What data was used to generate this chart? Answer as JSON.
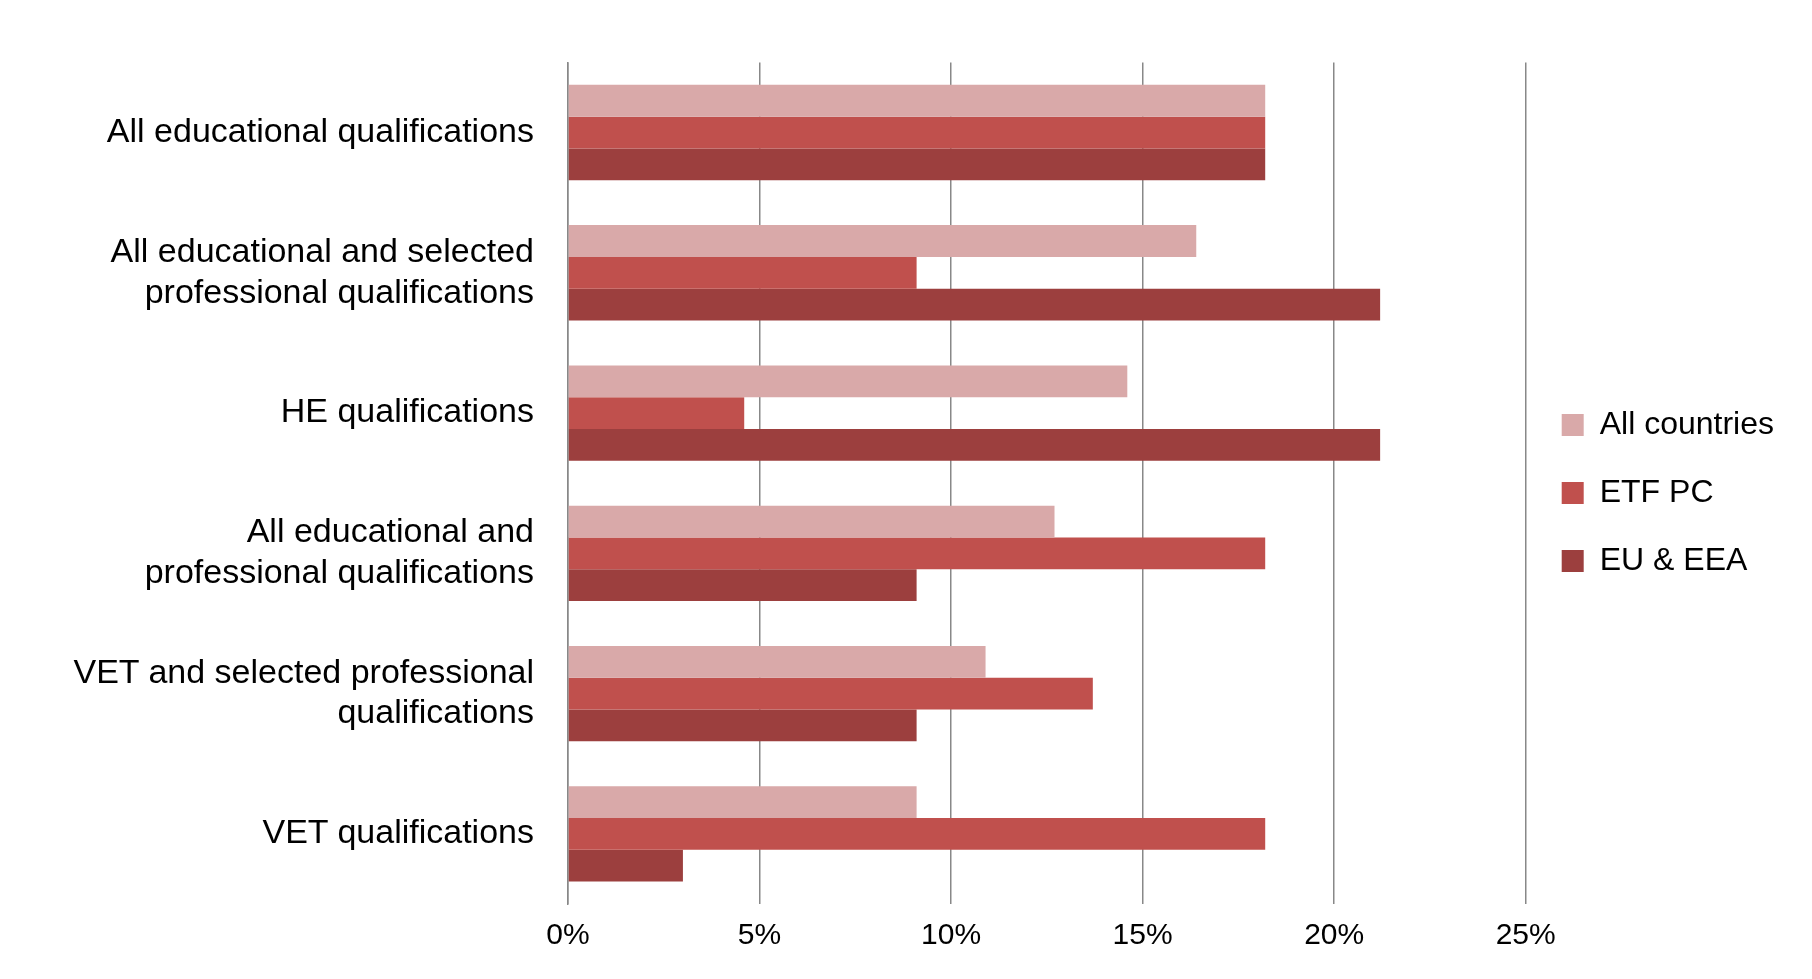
{
  "chart_data": {
    "type": "bar",
    "orientation": "horizontal",
    "categories": [
      "All educational qualifications",
      "All educational and selected professional qualifications",
      "HE qualifications",
      "All educational and professional qualifications",
      "VET and selected professional qualifications",
      "VET qualifications"
    ],
    "series": [
      {
        "name": "All countries",
        "color": "#d9a9a9",
        "values": [
          18.2,
          16.4,
          14.6,
          12.7,
          10.9,
          9.1
        ]
      },
      {
        "name": "ETF PC",
        "color": "#c0504d",
        "values": [
          18.2,
          9.1,
          4.6,
          18.2,
          13.7,
          18.2
        ]
      },
      {
        "name": "EU & EEA",
        "color": "#9c3f3e",
        "values": [
          18.2,
          21.2,
          21.2,
          9.1,
          9.1,
          3.0
        ]
      }
    ],
    "xlim": [
      0,
      25
    ],
    "xticks": [
      {
        "value": 0,
        "label": "0%"
      },
      {
        "value": 5,
        "label": "5%"
      },
      {
        "value": 10,
        "label": "10%"
      },
      {
        "value": 15,
        "label": "15%"
      },
      {
        "value": 20,
        "label": "20%"
      },
      {
        "value": 25,
        "label": "25%"
      }
    ],
    "grid": "x",
    "legend": "right"
  }
}
